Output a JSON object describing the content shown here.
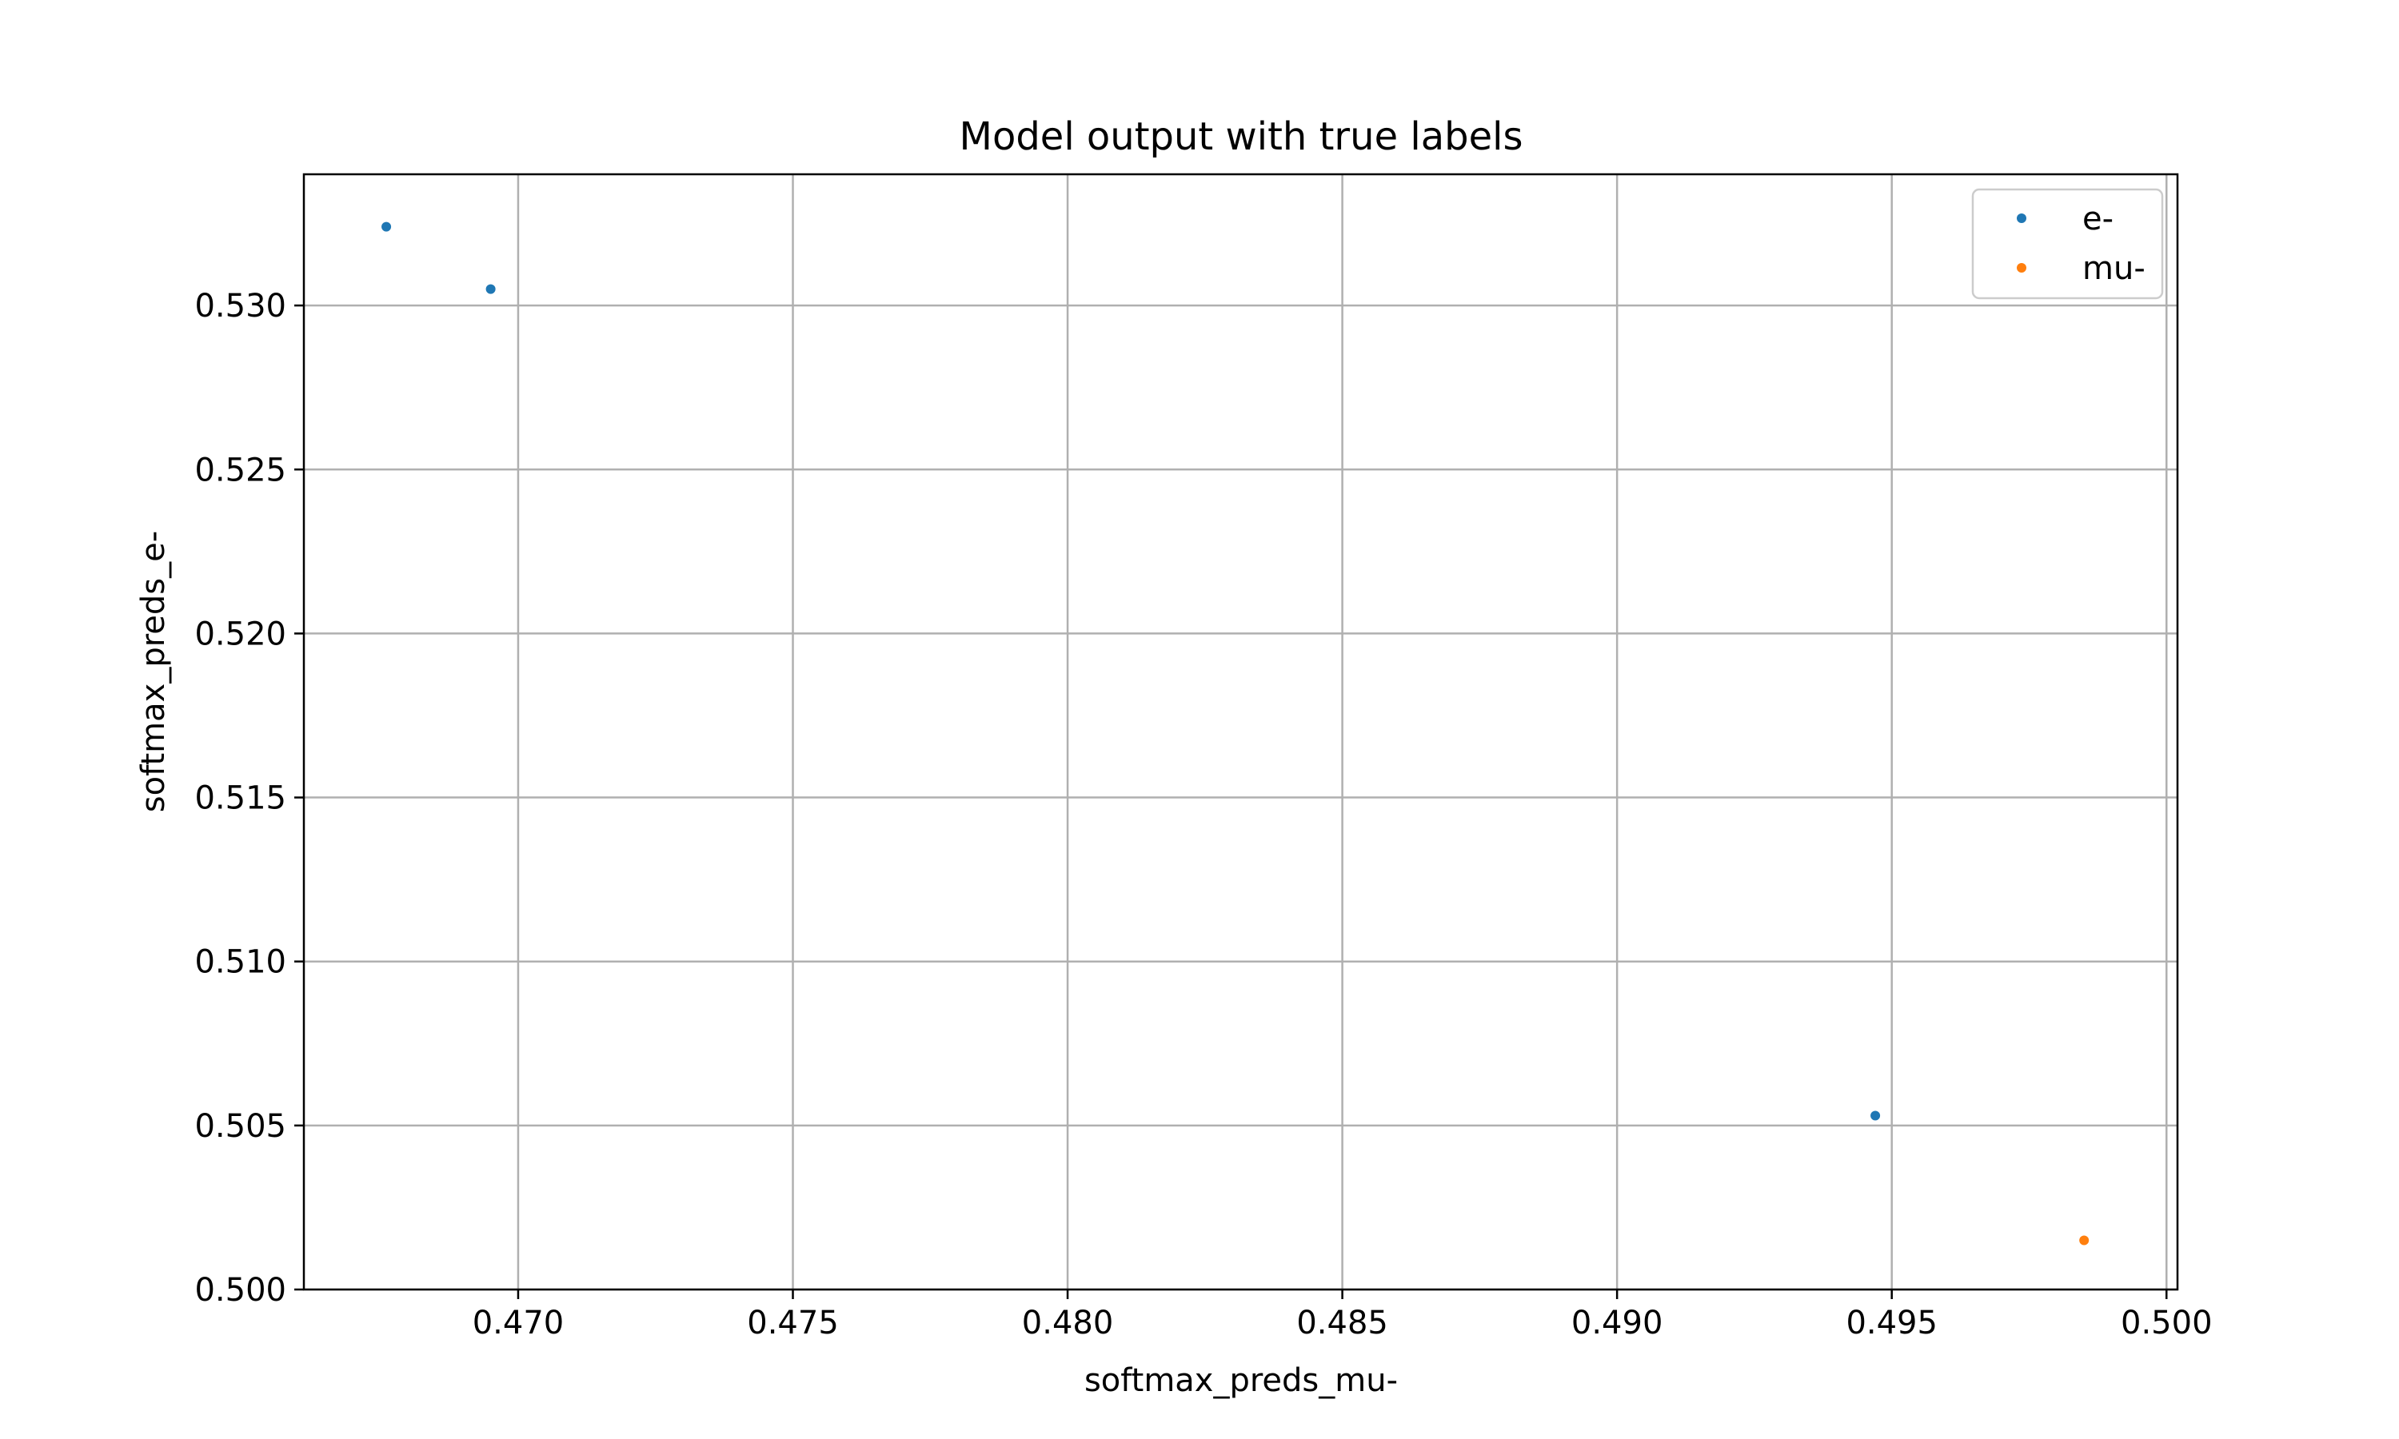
{
  "chart_data": {
    "type": "scatter",
    "title": "Model output with true labels",
    "xlabel": "softmax_preds_mu-",
    "ylabel": "softmax_preds_e-",
    "xlim": [
      0.4661,
      0.5002
    ],
    "ylim": [
      0.5,
      0.534
    ],
    "xticks": [
      "0.470",
      "0.475",
      "0.480",
      "0.485",
      "0.490",
      "0.495",
      "0.500"
    ],
    "yticks": [
      "0.500",
      "0.505",
      "0.510",
      "0.515",
      "0.520",
      "0.525",
      "0.530"
    ],
    "grid": true,
    "legend_position": "top-right",
    "series": [
      {
        "name": "e-",
        "color": "#1f77b4",
        "points": [
          {
            "x": 0.4676,
            "y": 0.5324
          },
          {
            "x": 0.4695,
            "y": 0.5305
          },
          {
            "x": 0.4947,
            "y": 0.5053
          }
        ]
      },
      {
        "name": "mu-",
        "color": "#ff7f0e",
        "points": [
          {
            "x": 0.4985,
            "y": 0.5015
          }
        ]
      }
    ]
  }
}
